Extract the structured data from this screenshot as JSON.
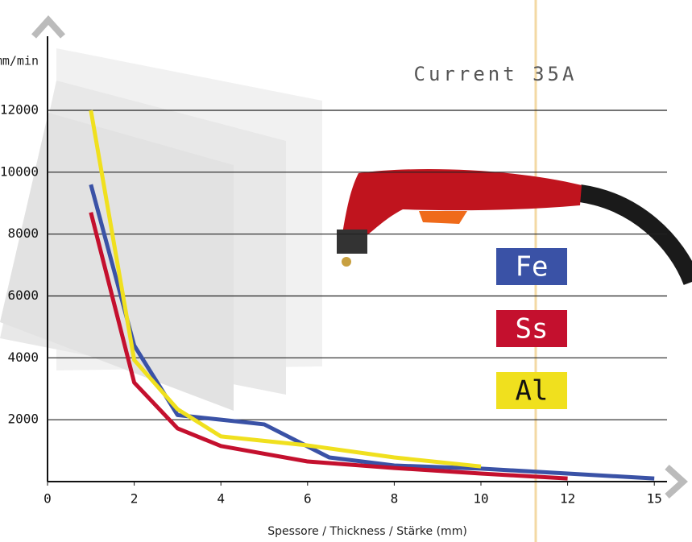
{
  "chart_data": {
    "type": "line",
    "title": "Current 35A",
    "y_label": "mm/min",
    "x_label": "Spessore / Thickness / Stärke (mm)",
    "xticks": [
      0,
      2,
      4,
      6,
      8,
      10,
      12,
      15
    ],
    "xlim": [
      0,
      15
    ],
    "ylim": [
      0,
      12000
    ],
    "yticks": [
      2000,
      4000,
      6000,
      8000,
      10000,
      12000
    ],
    "grid": true,
    "series": [
      {
        "name": "Fe",
        "color": "#3a52a6",
        "x": [
          1,
          2,
          3,
          4,
          5,
          6.5,
          8,
          10,
          12,
          15
        ],
        "values": [
          9600,
          4400,
          2150,
          2000,
          1850,
          780,
          520,
          420,
          260,
          100
        ]
      },
      {
        "name": "Ss",
        "color": "#c4102e",
        "x": [
          1,
          2,
          3,
          4,
          6,
          8,
          10,
          12
        ],
        "values": [
          8700,
          3200,
          1720,
          1150,
          650,
          440,
          260,
          100
        ]
      },
      {
        "name": "Al",
        "color": "#f0e01e",
        "x": [
          1,
          2,
          3,
          4,
          6,
          8,
          10
        ],
        "values": [
          12000,
          3930,
          2340,
          1460,
          1170,
          780,
          490
        ]
      }
    ]
  }
}
